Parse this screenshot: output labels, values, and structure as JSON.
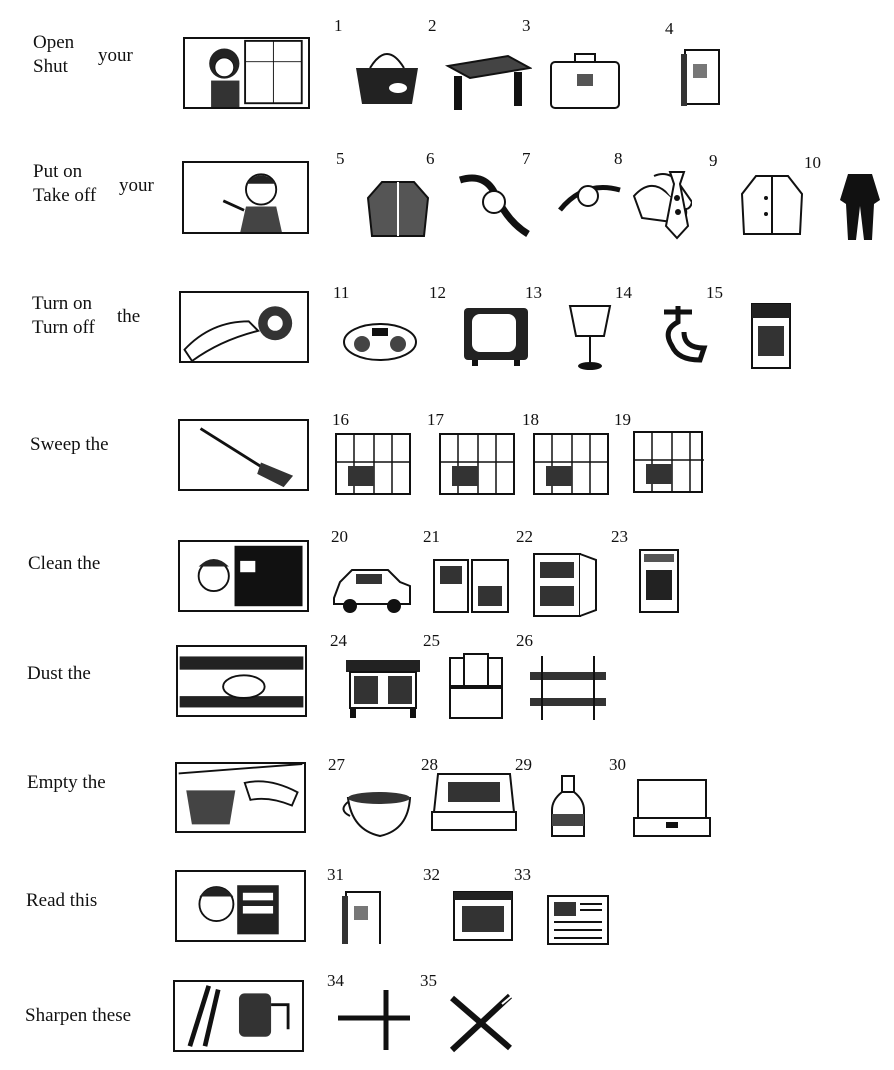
{
  "rows": [
    {
      "verbs": [
        "Open",
        "Shut"
      ],
      "object": "your",
      "scene_icon": "woman-at-window-illustration"
    },
    {
      "verbs": [
        "Put on",
        "Take off"
      ],
      "object": "your",
      "scene_icon": "boy-dressing-illustration"
    },
    {
      "verbs": [
        "Turn on",
        "Turn off"
      ],
      "object": "the",
      "scene_icon": "hand-turning-knob-illustration"
    },
    {
      "verbs": [
        "Sweep the"
      ],
      "object": "",
      "scene_icon": "broom-sweeping-illustration"
    },
    {
      "verbs": [
        "Clean the"
      ],
      "object": "",
      "scene_icon": "boy-cleaning-board-illustration"
    },
    {
      "verbs": [
        "Dust the"
      ],
      "object": "",
      "scene_icon": "hand-dusting-shelf-illustration"
    },
    {
      "verbs": [
        "Empty the"
      ],
      "object": "",
      "scene_icon": "hand-emptying-basket-illustration"
    },
    {
      "verbs": [
        "Read this"
      ],
      "object": "",
      "scene_icon": "boy-reading-illustration"
    },
    {
      "verbs": [
        "Sharpen these"
      ],
      "object": "",
      "scene_icon": "pencil-sharpener-illustration"
    }
  ],
  "items": [
    {
      "n": "1",
      "icon": "handbag-icon"
    },
    {
      "n": "2",
      "icon": "desk-icon"
    },
    {
      "n": "3",
      "icon": "suitcase-icon"
    },
    {
      "n": "4",
      "icon": "book-icon"
    },
    {
      "n": "5",
      "icon": "jacket-icon"
    },
    {
      "n": "6",
      "icon": "wristwatch-icon"
    },
    {
      "n": "7",
      "icon": "bracelet-watch-icon"
    },
    {
      "n": "8",
      "icon": "shoes-icon"
    },
    {
      "n": "9",
      "icon": "tie-icon"
    },
    {
      "n": "10",
      "icon": "coat-icon"
    },
    {
      "n": "",
      "icon": "suit-icon"
    },
    {
      "n": "11",
      "icon": "radio-cassette-icon"
    },
    {
      "n": "12",
      "icon": "television-icon"
    },
    {
      "n": "13",
      "icon": "lamp-icon"
    },
    {
      "n": "14",
      "icon": "tap-icon"
    },
    {
      "n": "15",
      "icon": "cooker-icon"
    },
    {
      "n": "16",
      "icon": "floor-icon"
    },
    {
      "n": "17",
      "icon": "kitchen-icon"
    },
    {
      "n": "18",
      "icon": "living-room-icon"
    },
    {
      "n": "19",
      "icon": "bedroom-icon"
    },
    {
      "n": "20",
      "icon": "car-icon"
    },
    {
      "n": "21",
      "icon": "windows-icon"
    },
    {
      "n": "22",
      "icon": "cupboard-icon"
    },
    {
      "n": "23",
      "icon": "oven-icon"
    },
    {
      "n": "24",
      "icon": "sideboard-icon"
    },
    {
      "n": "25",
      "icon": "dressing-table-icon"
    },
    {
      "n": "26",
      "icon": "shelves-icon"
    },
    {
      "n": "27",
      "icon": "bowl-icon"
    },
    {
      "n": "28",
      "icon": "box-icon"
    },
    {
      "n": "29",
      "icon": "bottle-icon"
    },
    {
      "n": "30",
      "icon": "briefcase-icon"
    },
    {
      "n": "31",
      "icon": "book-icon"
    },
    {
      "n": "32",
      "icon": "magazine-icon"
    },
    {
      "n": "33",
      "icon": "newspaper-icon"
    },
    {
      "n": "34",
      "icon": "pencils-icon"
    },
    {
      "n": "35",
      "icon": "crossed-pencils-icon"
    }
  ]
}
